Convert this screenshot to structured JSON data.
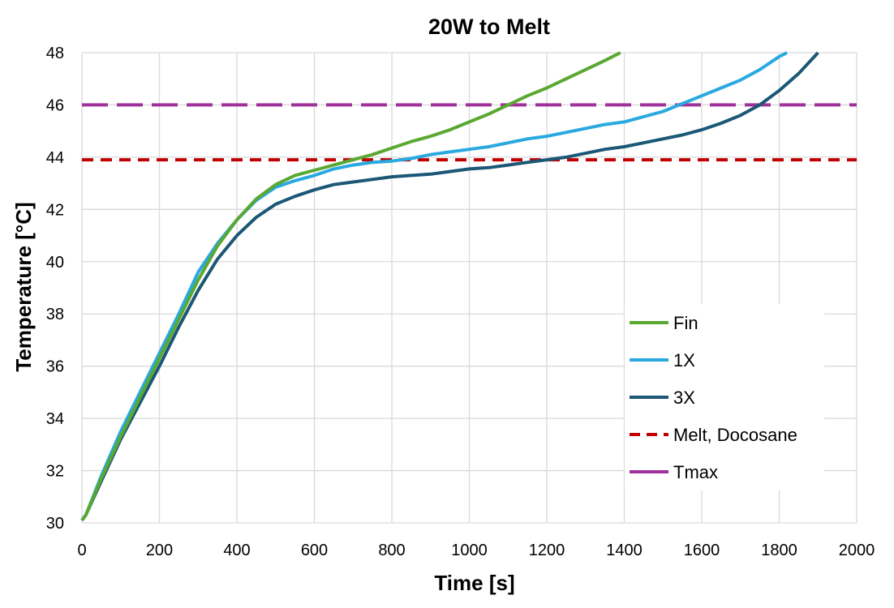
{
  "chart_data": {
    "type": "line",
    "title": "20W to Melt",
    "xlabel": "Time [s]",
    "ylabel": "Temperature [°C]",
    "xlim": [
      0,
      2000
    ],
    "ylim": [
      30,
      48
    ],
    "xticks": [
      0,
      200,
      400,
      600,
      800,
      1000,
      1200,
      1400,
      1600,
      1800,
      2000
    ],
    "yticks": [
      30,
      32,
      34,
      36,
      38,
      40,
      42,
      44,
      46,
      48
    ],
    "grid": true,
    "legend_position": "bottom-right",
    "series": [
      {
        "name": "Fin",
        "color": "#5aa832",
        "dash": "solid",
        "x": [
          0,
          10,
          50,
          100,
          150,
          200,
          250,
          300,
          350,
          400,
          450,
          500,
          550,
          600,
          650,
          700,
          750,
          800,
          850,
          900,
          950,
          1000,
          1050,
          1100,
          1150,
          1200,
          1250,
          1300,
          1350,
          1390
        ],
        "y": [
          30.1,
          30.3,
          31.7,
          33.3,
          34.8,
          36.3,
          37.8,
          39.3,
          40.6,
          41.6,
          42.4,
          42.95,
          43.3,
          43.5,
          43.7,
          43.9,
          44.1,
          44.35,
          44.6,
          44.8,
          45.05,
          45.35,
          45.65,
          46.0,
          46.35,
          46.65,
          47.0,
          47.35,
          47.7,
          48.0
        ]
      },
      {
        "name": "1X",
        "color": "#29a9df",
        "dash": "solid",
        "x": [
          0,
          10,
          50,
          100,
          150,
          200,
          250,
          300,
          350,
          400,
          450,
          500,
          550,
          600,
          650,
          700,
          750,
          800,
          850,
          900,
          950,
          1000,
          1050,
          1100,
          1150,
          1200,
          1250,
          1300,
          1350,
          1400,
          1450,
          1500,
          1550,
          1600,
          1650,
          1700,
          1750,
          1800,
          1820
        ],
        "y": [
          30.1,
          30.3,
          31.8,
          33.5,
          35.0,
          36.5,
          38.0,
          39.6,
          40.7,
          41.6,
          42.35,
          42.85,
          43.1,
          43.3,
          43.55,
          43.7,
          43.8,
          43.85,
          43.95,
          44.1,
          44.2,
          44.3,
          44.4,
          44.55,
          44.7,
          44.8,
          44.95,
          45.1,
          45.25,
          45.35,
          45.55,
          45.75,
          46.05,
          46.35,
          46.65,
          46.95,
          47.35,
          47.85,
          48.0
        ]
      },
      {
        "name": "3X",
        "color": "#1b5776",
        "dash": "solid",
        "x": [
          0,
          10,
          50,
          100,
          150,
          200,
          250,
          300,
          350,
          400,
          450,
          500,
          550,
          600,
          650,
          700,
          750,
          800,
          850,
          900,
          950,
          1000,
          1050,
          1100,
          1150,
          1200,
          1250,
          1300,
          1350,
          1400,
          1450,
          1500,
          1550,
          1600,
          1650,
          1700,
          1750,
          1800,
          1850,
          1900
        ],
        "y": [
          30.1,
          30.3,
          31.6,
          33.2,
          34.6,
          36.0,
          37.5,
          38.9,
          40.1,
          41.0,
          41.7,
          42.2,
          42.5,
          42.75,
          42.95,
          43.05,
          43.15,
          43.25,
          43.3,
          43.35,
          43.45,
          43.55,
          43.6,
          43.7,
          43.8,
          43.9,
          44.0,
          44.15,
          44.3,
          44.4,
          44.55,
          44.7,
          44.85,
          45.05,
          45.3,
          45.6,
          46.0,
          46.55,
          47.2,
          48.0
        ]
      },
      {
        "name": "Melt, Docosane",
        "color": "#c00000",
        "dash": "dashed",
        "x": [
          0,
          2000
        ],
        "y": [
          43.9,
          43.9
        ]
      },
      {
        "name": "Tmax",
        "color": "#a0319a",
        "dash": "long-dashed",
        "x": [
          0,
          2000
        ],
        "y": [
          46.0,
          46.0
        ]
      }
    ]
  }
}
